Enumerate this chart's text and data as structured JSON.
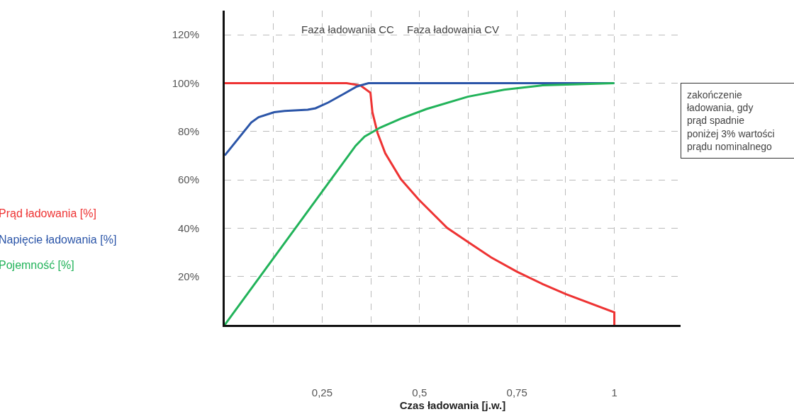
{
  "chart_data": {
    "type": "line",
    "xlabel": "Czas ładowania [j.w.]",
    "xlim": [
      0,
      1.17
    ],
    "xticks": [
      {
        "value": 0.125,
        "label": null
      },
      {
        "value": 0.25,
        "label": "0,25"
      },
      {
        "value": 0.375,
        "label": null
      },
      {
        "value": 0.5,
        "label": "0,5"
      },
      {
        "value": 0.625,
        "label": null
      },
      {
        "value": 0.75,
        "label": "0,75"
      },
      {
        "value": 0.875,
        "label": null
      },
      1
    ],
    "ylim": [
      0,
      130
    ],
    "yticks": [
      {
        "value": 0,
        "label": null
      },
      {
        "value": 20,
        "label": "20%"
      },
      {
        "value": 40,
        "label": "40%"
      },
      {
        "value": 60,
        "label": "60%"
      },
      {
        "value": 80,
        "label": "80%"
      },
      {
        "value": 100,
        "label": "100%"
      },
      {
        "value": 120,
        "label": "120%"
      }
    ],
    "grid": true,
    "legend": "left",
    "line_style": "solid",
    "series": [
      {
        "name": "Prąd ładowania [%]",
        "color": "#ee3333",
        "x": [
          0,
          0.313,
          0.349,
          0.374,
          0.379,
          0.392,
          0.412,
          0.452,
          0.498,
          0.571,
          0.624,
          0.684,
          0.75,
          0.816,
          0.876,
          1,
          1
        ],
        "values": [
          100,
          100,
          99,
          96,
          88,
          79.5,
          71,
          60.3,
          51.8,
          40.1,
          34.3,
          27.9,
          22,
          16.9,
          12.7,
          5.2,
          0
        ]
      },
      {
        "name": "Napięcie ładowania [%]",
        "color": "#2b55a8",
        "x": [
          0,
          0.068,
          0.087,
          0.127,
          0.154,
          0.213,
          0.233,
          0.266,
          0.306,
          0.339,
          0.369,
          1
        ],
        "values": [
          70.1,
          83.7,
          85.9,
          88,
          88.5,
          89,
          89.6,
          92,
          95.6,
          98.6,
          100,
          100
        ]
      },
      {
        "name": "Pojemność [%]",
        "color": "#22b35a",
        "x": [
          0,
          0.336,
          0.359,
          0.399,
          0.452,
          0.518,
          0.624,
          0.717,
          0.816,
          1
        ],
        "values": [
          0,
          74.1,
          77.9,
          81.6,
          85.3,
          89.3,
          94.4,
          97.3,
          99.1,
          100
        ]
      }
    ],
    "annotations": [
      "Faza ładowania CC",
      "Faza ładowania CV",
      "zakończenie\nładowania, gdy\nprąd spadnie\nponiżej 3% wartości\nprądu nominalnego"
    ]
  }
}
